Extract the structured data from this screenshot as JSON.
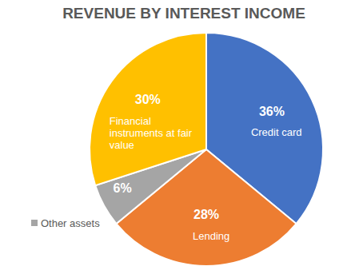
{
  "chart_data": {
    "type": "pie",
    "title": "REVENUE BY INTEREST INCOME",
    "categories": [
      "Credit card",
      "Lending",
      "Other assets",
      "Financial instruments at fair value"
    ],
    "values": [
      36,
      28,
      6,
      30
    ],
    "value_labels": [
      "36%",
      "28%",
      "6%",
      "30%"
    ],
    "colors": [
      "#4472c4",
      "#ed7d31",
      "#a5a5a5",
      "#ffc000"
    ],
    "data_labels": true
  }
}
